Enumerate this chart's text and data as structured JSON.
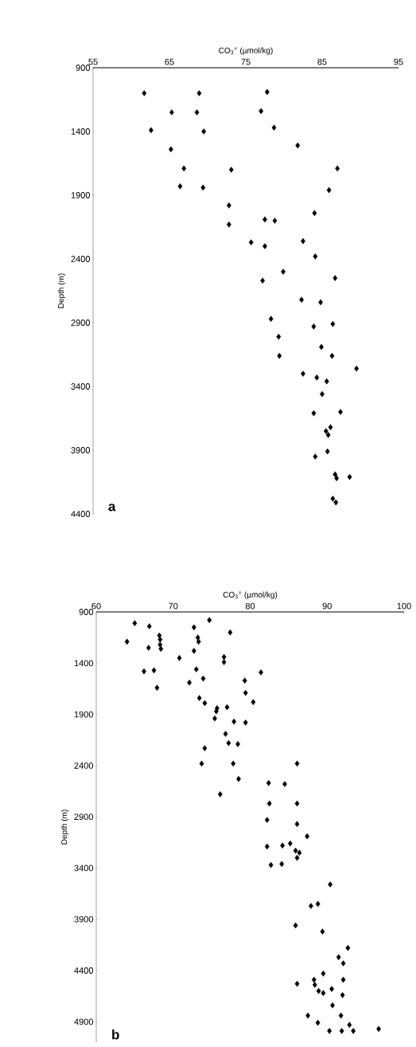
{
  "chart_data": [
    {
      "type": "scatter",
      "xlabel": "CO$_{3}$$^{=}$ (µmol/kg)",
      "ylabel": "Depth (m)",
      "annotations": [
        "**a**"
      ],
      "xlim": [
        55,
        95
      ],
      "xticks": [
        55,
        65,
        75,
        85,
        95
      ],
      "ylim": [
        4400,
        900
      ],
      "yticks": [
        900,
        1400,
        1900,
        2400,
        2900,
        3400,
        3900,
        4400
      ],
      "grid": false,
      "marker": "diamond",
      "series": [
        {
          "color": "#000000",
          "x": [
            61.7,
            68.9,
            77.8,
            65.3,
            68.6,
            77.0,
            62.6,
            69.5,
            78.7,
            65.2,
            81.8,
            66.9,
            73.1,
            87.0,
            66.4,
            69.4,
            85.9,
            72.8,
            84.0,
            72.8,
            77.5,
            78.8,
            75.7,
            77.5,
            82.5,
            84.1,
            79.9,
            77.2,
            86.7,
            82.3,
            84.8,
            78.3,
            83.9,
            86.4,
            79.3,
            84.9,
            86.3,
            79.4,
            89.5,
            82.5,
            84.3,
            85.6,
            85.0,
            83.9,
            87.4,
            86.1,
            85.5,
            85.8,
            85.7,
            84.1,
            86.7,
            86.9,
            88.6,
            86.4,
            86.8
          ],
          "values": [
            1100,
            1100,
            1090,
            1250,
            1250,
            1240,
            1390,
            1400,
            1370,
            1540,
            1510,
            1690,
            1700,
            1690,
            1830,
            1840,
            1860,
            1980,
            2040,
            2130,
            2090,
            2100,
            2270,
            2300,
            2260,
            2380,
            2500,
            2570,
            2550,
            2720,
            2740,
            2870,
            2930,
            2910,
            3010,
            3090,
            3160,
            3160,
            3260,
            3300,
            3330,
            3360,
            3460,
            3610,
            3600,
            3720,
            3750,
            3780,
            3910,
            3950,
            4090,
            4120,
            4110,
            4280,
            4310
          ]
        }
      ]
    },
    {
      "type": "scatter",
      "xlabel": "CO$_{3}$$^{=}$ (µmol/kg)",
      "ylabel": "Depth (m)",
      "annotations": [
        "**b**"
      ],
      "xlim": [
        60,
        100
      ],
      "xticks": [
        60,
        70,
        80,
        90,
        100
      ],
      "ylim": [
        5100,
        900
      ],
      "yticks": [
        900,
        1400,
        1900,
        2400,
        2900,
        3400,
        3900,
        4400,
        4900
      ],
      "grid": false,
      "marker": "diamond",
      "series": [
        {
          "color": "#000000",
          "x": [
            65.0,
            66.9,
            74.7,
            72.7,
            77.4,
            64.0,
            68.2,
            68.3,
            68.3,
            68.4,
            66.8,
            73.2,
            73.3,
            72.7,
            70.8,
            76.6,
            76.6,
            66.2,
            67.5,
            73.0,
            81.4,
            67.9,
            73.9,
            72.1,
            79.3,
            79.4,
            80.4,
            73.4,
            74.1,
            75.7,
            75.6,
            75.4,
            77.0,
            77.9,
            79.4,
            76.8,
            77.2,
            78.4,
            74.1,
            73.7,
            77.8,
            86.1,
            78.5,
            82.4,
            84.5,
            76.1,
            82.5,
            86.1,
            82.2,
            86.1,
            87.4,
            82.2,
            84.2,
            85.2,
            85.9,
            86.4,
            86.1,
            82.7,
            84.1,
            90.4,
            87.9,
            88.8,
            85.9,
            89.4,
            92.7,
            91.5,
            92.1,
            89.5,
            88.3,
            92.1,
            86.1,
            88.4,
            88.9,
            89.5,
            90.6,
            92.0,
            90.7,
            91.8,
            87.5,
            88.8,
            90.3,
            91.9,
            92.9,
            93.4,
            96.7
          ],
          "values": [
            1010,
            1040,
            980,
            1050,
            1100,
            1190,
            1130,
            1170,
            1220,
            1260,
            1250,
            1150,
            1190,
            1280,
            1350,
            1340,
            1390,
            1480,
            1470,
            1460,
            1490,
            1640,
            1550,
            1590,
            1570,
            1690,
            1780,
            1740,
            1790,
            1840,
            1870,
            1940,
            1830,
            1970,
            1980,
            2090,
            2180,
            2190,
            2230,
            2380,
            2380,
            2380,
            2530,
            2570,
            2580,
            2680,
            2770,
            2770,
            2930,
            2970,
            3090,
            3190,
            3180,
            3160,
            3230,
            3250,
            3300,
            3370,
            3360,
            3560,
            3770,
            3750,
            3960,
            4020,
            4180,
            4270,
            4330,
            4430,
            4490,
            4490,
            4530,
            4540,
            4600,
            4620,
            4580,
            4640,
            4740,
            4840,
            4840,
            4910,
            4990,
            4990,
            4930,
            4990,
            4970
          ]
        }
      ]
    }
  ]
}
